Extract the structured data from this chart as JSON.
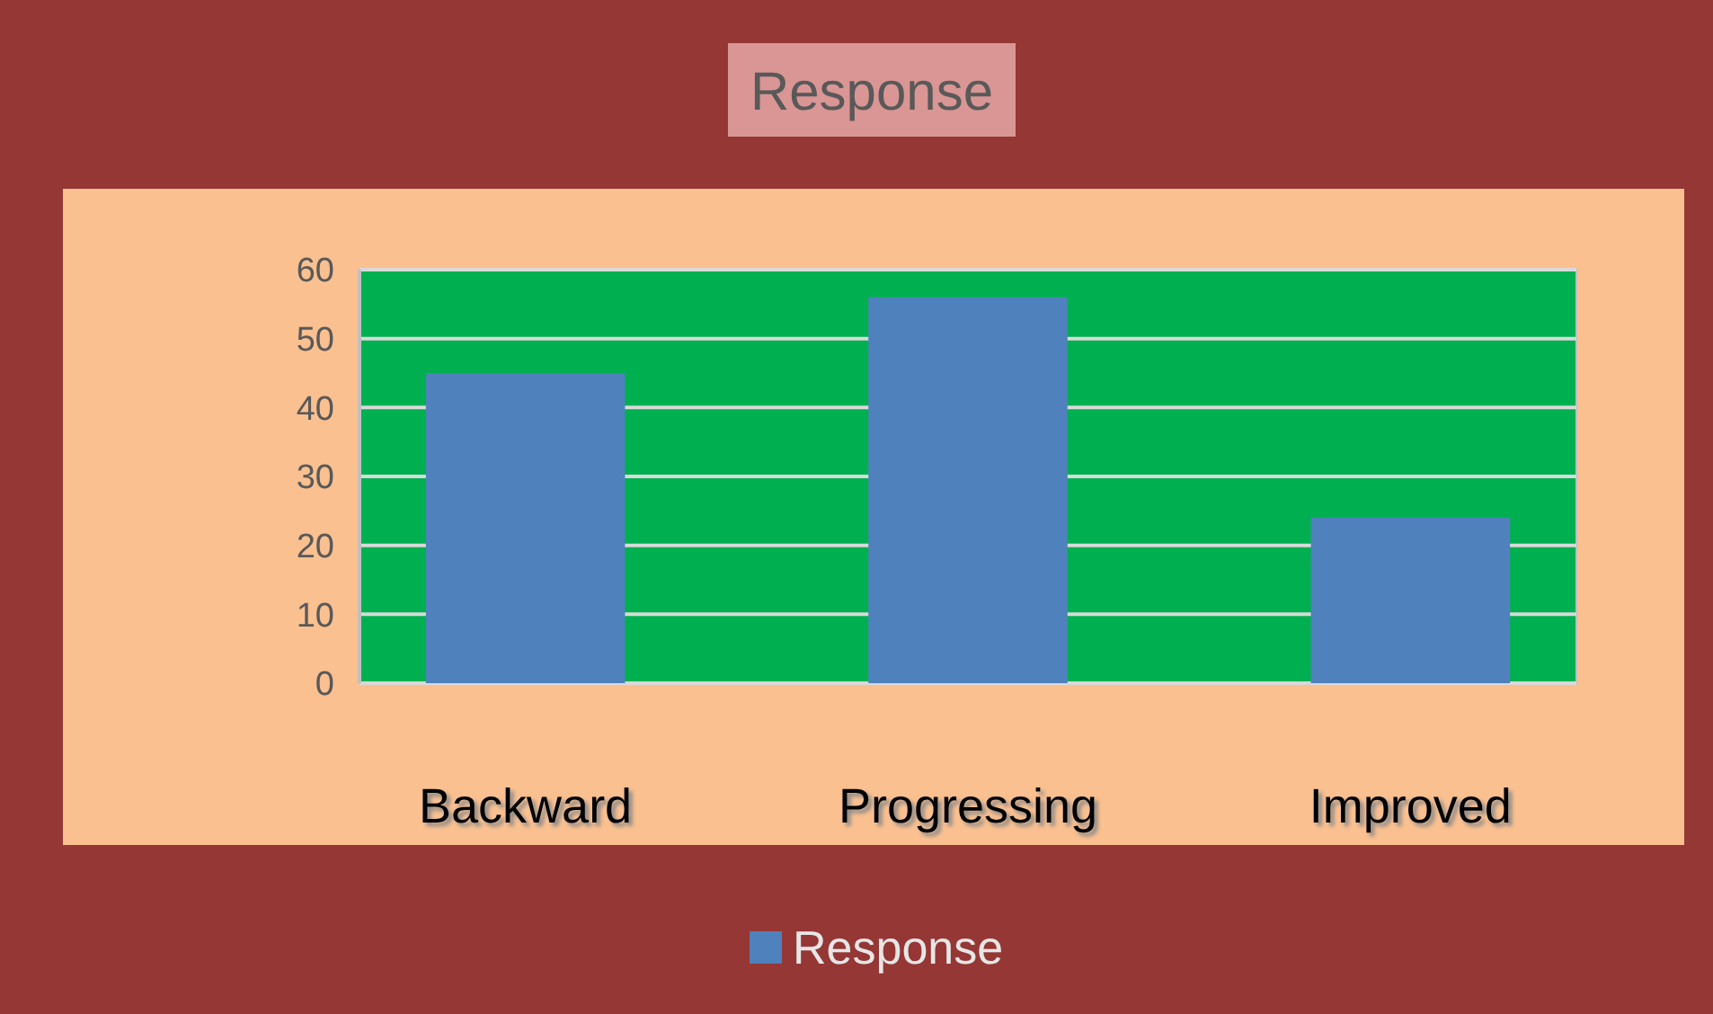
{
  "chart_data": {
    "type": "bar",
    "title": "Response",
    "categories": [
      "Backward",
      "Progressing",
      "Improved"
    ],
    "series": [
      {
        "name": "Response",
        "color": "#4f81bd",
        "values": [
          45,
          56,
          24
        ]
      }
    ],
    "ylim": [
      0,
      60
    ],
    "yticks": [
      0,
      10,
      20,
      30,
      40,
      50,
      60
    ],
    "grid": "y",
    "legend": "bottom"
  }
}
